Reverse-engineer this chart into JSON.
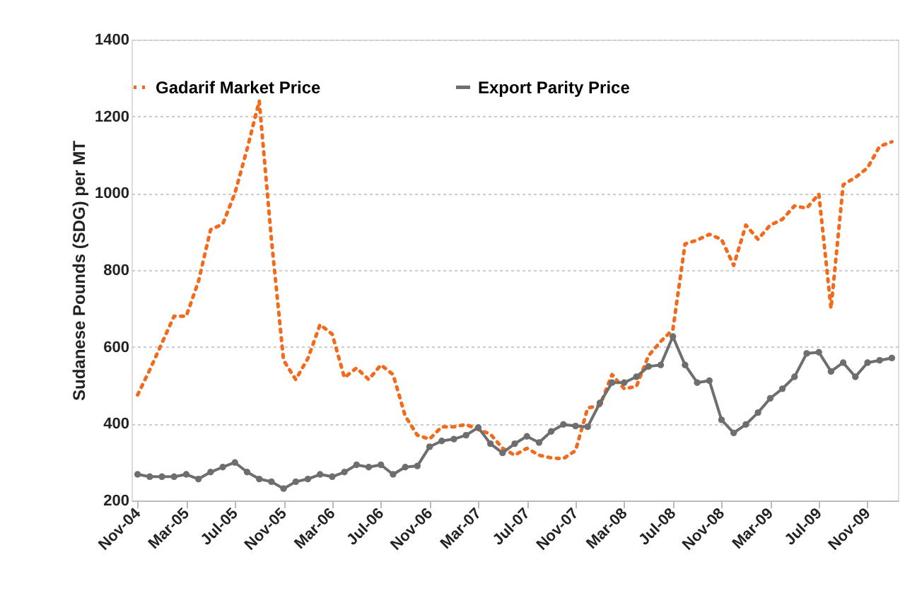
{
  "chart_data": {
    "type": "line",
    "ylabel": "Sudanese Pounds (SDG) per MT",
    "categories": [
      "Nov-04",
      null,
      null,
      null,
      "Mar-05",
      null,
      null,
      null,
      "Jul-05",
      null,
      null,
      null,
      "Nov-05",
      null,
      null,
      null,
      "Mar-06",
      null,
      null,
      null,
      "Jul-06",
      null,
      null,
      null,
      "Nov-06",
      null,
      null,
      null,
      "Mar-07",
      null,
      null,
      null,
      "Jul-07",
      null,
      null,
      null,
      "Nov-07",
      null,
      null,
      null,
      "Mar-08",
      null,
      null,
      null,
      "Jul-08",
      null,
      null,
      null,
      "Nov-08",
      null,
      null,
      null,
      "Mar-09",
      null,
      null,
      null,
      "Jul-09",
      null,
      null,
      null,
      "Nov-09",
      null,
      null
    ],
    "series": [
      {
        "name": "Gadarif Market Price",
        "color": "#f26b1d",
        "line_style": "dotted",
        "marker": "none",
        "values": [
          475,
          540,
          610,
          680,
          680,
          770,
          905,
          920,
          1000,
          1115,
          1240,
          880,
          565,
          515,
          570,
          658,
          633,
          520,
          545,
          515,
          553,
          528,
          420,
          370,
          360,
          392,
          392,
          398,
          385,
          373,
          336,
          318,
          336,
          318,
          311,
          309,
          330,
          441,
          447,
          528,
          491,
          497,
          577,
          614,
          645,
          868,
          878,
          893,
          880,
          812,
          917,
          880,
          917,
          932,
          967,
          961,
          998,
          700,
          1022,
          1041,
          1066,
          1122,
          1134
        ]
      },
      {
        "name": "Export Parity Price",
        "color": "#6e6e6e",
        "line_style": "solid",
        "marker": "circle",
        "values": [
          268,
          262,
          262,
          262,
          268,
          256,
          274,
          287,
          299,
          274,
          256,
          249,
          231,
          249,
          256,
          268,
          262,
          274,
          293,
          287,
          293,
          268,
          287,
          290,
          340,
          355,
          360,
          370,
          390,
          348,
          324,
          348,
          367,
          351,
          380,
          398,
          394,
          392,
          454,
          507,
          507,
          522,
          549,
          553,
          627,
          553,
          507,
          512,
          410,
          376,
          398,
          429,
          466,
          491,
          522,
          583,
          586,
          536,
          559,
          522,
          559,
          565,
          571
        ]
      }
    ],
    "ylim": [
      200,
      1400
    ],
    "yticks": [
      200,
      400,
      600,
      800,
      1000,
      1200,
      1400
    ],
    "grid": "y",
    "legend": "top"
  }
}
